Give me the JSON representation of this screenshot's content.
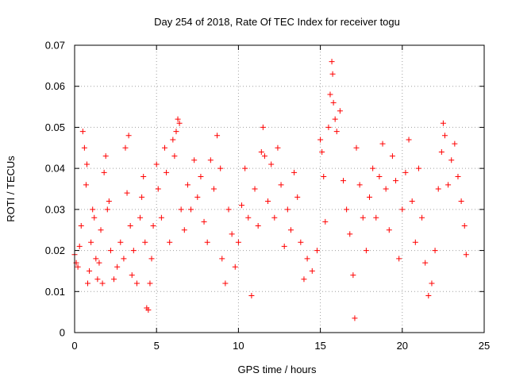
{
  "chart_data": {
    "type": "scatter",
    "title": "Day 254 of 2018, Rate Of TEC Index for receiver togu",
    "xlabel": "GPS time / hours",
    "ylabel": "ROTI / TECUs",
    "xlim": [
      0,
      25
    ],
    "ylim": [
      0,
      0.07
    ],
    "xticks": [
      0,
      5,
      10,
      15,
      20,
      25
    ],
    "xtick_labels": [
      "0",
      "5",
      "10",
      "15",
      "20",
      "25"
    ],
    "yticks": [
      0,
      0.01,
      0.02,
      0.03,
      0.04,
      0.05,
      0.06,
      0.07
    ],
    "ytick_labels": [
      "0",
      "0.01",
      "0.02",
      "0.03",
      "0.04",
      "0.05",
      "0.06",
      "0.07"
    ],
    "grid": true,
    "marker": "+",
    "series": [
      {
        "color": "#ff0000",
        "points": [
          [
            0.0,
            0.019
          ],
          [
            0.1,
            0.017
          ],
          [
            0.2,
            0.016
          ],
          [
            0.3,
            0.021
          ],
          [
            0.4,
            0.026
          ],
          [
            0.5,
            0.049
          ],
          [
            0.6,
            0.045
          ],
          [
            0.7,
            0.036
          ],
          [
            0.75,
            0.041
          ],
          [
            0.8,
            0.012
          ],
          [
            0.9,
            0.015
          ],
          [
            1.0,
            0.022
          ],
          [
            1.1,
            0.03
          ],
          [
            1.2,
            0.028
          ],
          [
            1.3,
            0.018
          ],
          [
            1.4,
            0.013
          ],
          [
            1.5,
            0.017
          ],
          [
            1.6,
            0.025
          ],
          [
            1.7,
            0.012
          ],
          [
            1.8,
            0.039
          ],
          [
            1.9,
            0.043
          ],
          [
            2.0,
            0.03
          ],
          [
            2.1,
            0.032
          ],
          [
            2.2,
            0.02
          ],
          [
            2.4,
            0.013
          ],
          [
            2.6,
            0.016
          ],
          [
            2.8,
            0.022
          ],
          [
            3.0,
            0.018
          ],
          [
            3.1,
            0.045
          ],
          [
            3.2,
            0.034
          ],
          [
            3.3,
            0.048
          ],
          [
            3.4,
            0.026
          ],
          [
            3.5,
            0.014
          ],
          [
            3.6,
            0.02
          ],
          [
            3.8,
            0.012
          ],
          [
            4.0,
            0.028
          ],
          [
            4.1,
            0.033
          ],
          [
            4.2,
            0.038
          ],
          [
            4.3,
            0.022
          ],
          [
            4.4,
            0.006
          ],
          [
            4.5,
            0.0055
          ],
          [
            4.6,
            0.012
          ],
          [
            4.7,
            0.018
          ],
          [
            4.8,
            0.026
          ],
          [
            5.0,
            0.041
          ],
          [
            5.1,
            0.035
          ],
          [
            5.3,
            0.028
          ],
          [
            5.5,
            0.045
          ],
          [
            5.6,
            0.039
          ],
          [
            5.8,
            0.022
          ],
          [
            6.0,
            0.047
          ],
          [
            6.1,
            0.043
          ],
          [
            6.2,
            0.049
          ],
          [
            6.3,
            0.052
          ],
          [
            6.4,
            0.051
          ],
          [
            6.5,
            0.03
          ],
          [
            6.7,
            0.025
          ],
          [
            6.9,
            0.036
          ],
          [
            7.1,
            0.03
          ],
          [
            7.3,
            0.042
          ],
          [
            7.5,
            0.033
          ],
          [
            7.7,
            0.038
          ],
          [
            7.9,
            0.027
          ],
          [
            8.1,
            0.022
          ],
          [
            8.3,
            0.042
          ],
          [
            8.5,
            0.035
          ],
          [
            8.7,
            0.048
          ],
          [
            8.9,
            0.04
          ],
          [
            9.0,
            0.018
          ],
          [
            9.2,
            0.012
          ],
          [
            9.4,
            0.03
          ],
          [
            9.6,
            0.024
          ],
          [
            9.8,
            0.016
          ],
          [
            10.0,
            0.022
          ],
          [
            10.2,
            0.031
          ],
          [
            10.4,
            0.04
          ],
          [
            10.6,
            0.028
          ],
          [
            10.8,
            0.009
          ],
          [
            11.0,
            0.035
          ],
          [
            11.2,
            0.026
          ],
          [
            11.4,
            0.044
          ],
          [
            11.5,
            0.05
          ],
          [
            11.6,
            0.043
          ],
          [
            11.8,
            0.032
          ],
          [
            12.0,
            0.041
          ],
          [
            12.2,
            0.028
          ],
          [
            12.4,
            0.045
          ],
          [
            12.6,
            0.036
          ],
          [
            12.8,
            0.021
          ],
          [
            13.0,
            0.03
          ],
          [
            13.2,
            0.025
          ],
          [
            13.4,
            0.039
          ],
          [
            13.6,
            0.033
          ],
          [
            13.8,
            0.022
          ],
          [
            14.0,
            0.013
          ],
          [
            14.2,
            0.018
          ],
          [
            14.5,
            0.015
          ],
          [
            14.8,
            0.02
          ],
          [
            15.0,
            0.047
          ],
          [
            15.1,
            0.044
          ],
          [
            15.2,
            0.038
          ],
          [
            15.3,
            0.027
          ],
          [
            15.5,
            0.05
          ],
          [
            15.6,
            0.058
          ],
          [
            15.7,
            0.066
          ],
          [
            15.75,
            0.063
          ],
          [
            15.8,
            0.056
          ],
          [
            15.9,
            0.052
          ],
          [
            16.0,
            0.049
          ],
          [
            16.2,
            0.054
          ],
          [
            16.4,
            0.037
          ],
          [
            16.6,
            0.03
          ],
          [
            16.8,
            0.024
          ],
          [
            17.0,
            0.014
          ],
          [
            17.1,
            0.0035
          ],
          [
            17.2,
            0.045
          ],
          [
            17.4,
            0.036
          ],
          [
            17.6,
            0.028
          ],
          [
            17.8,
            0.02
          ],
          [
            18.0,
            0.033
          ],
          [
            18.2,
            0.04
          ],
          [
            18.4,
            0.028
          ],
          [
            18.6,
            0.038
          ],
          [
            18.8,
            0.046
          ],
          [
            19.0,
            0.035
          ],
          [
            19.2,
            0.025
          ],
          [
            19.4,
            0.043
          ],
          [
            19.6,
            0.037
          ],
          [
            19.8,
            0.018
          ],
          [
            20.0,
            0.03
          ],
          [
            20.2,
            0.039
          ],
          [
            20.4,
            0.047
          ],
          [
            20.6,
            0.032
          ],
          [
            20.8,
            0.022
          ],
          [
            21.0,
            0.04
          ],
          [
            21.2,
            0.028
          ],
          [
            21.4,
            0.017
          ],
          [
            21.6,
            0.009
          ],
          [
            21.8,
            0.012
          ],
          [
            22.0,
            0.02
          ],
          [
            22.2,
            0.035
          ],
          [
            22.4,
            0.044
          ],
          [
            22.5,
            0.051
          ],
          [
            22.6,
            0.048
          ],
          [
            22.8,
            0.036
          ],
          [
            23.0,
            0.042
          ],
          [
            23.2,
            0.046
          ],
          [
            23.4,
            0.038
          ],
          [
            23.6,
            0.032
          ],
          [
            23.8,
            0.026
          ],
          [
            23.9,
            0.019
          ]
        ]
      }
    ]
  }
}
